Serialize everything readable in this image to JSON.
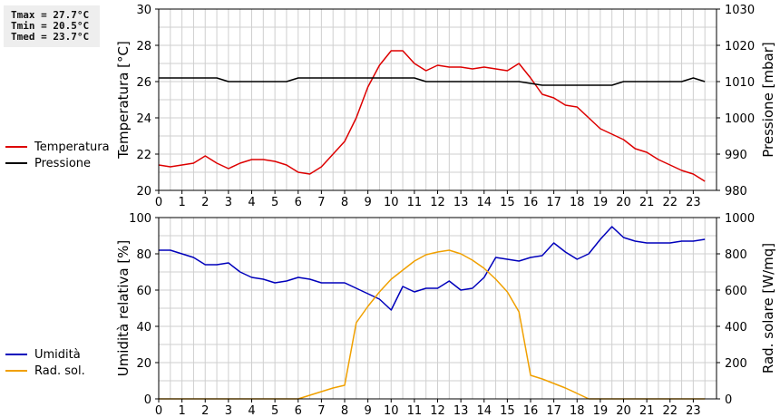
{
  "stats": {
    "tmax": "Tmax = 27.7°C",
    "tmin": "Tmin = 20.5°C",
    "tmed": "Tmed = 23.7°C"
  },
  "colors": {
    "temperature": "#dd0000",
    "pressure": "#000000",
    "humidity": "#0000bb",
    "solar": "#f0a000",
    "grid": "#cfcfcf"
  },
  "chart_data": [
    {
      "type": "line",
      "x_ticks": [
        "0",
        "1",
        "2",
        "3",
        "4",
        "5",
        "6",
        "7",
        "8",
        "9",
        "10",
        "11",
        "12",
        "13",
        "14",
        "15",
        "16",
        "17",
        "18",
        "19",
        "20",
        "21",
        "22",
        "23"
      ],
      "xlim": [
        0,
        24
      ],
      "ylabel_left": "Temperatura [°C]",
      "ylabel_right": "Pressione [mbar]",
      "ylim_left": [
        20,
        30
      ],
      "ylim_right": [
        980,
        1030
      ],
      "yticks_left": [
        "20",
        "22",
        "24",
        "26",
        "28",
        "30"
      ],
      "yticks_right": [
        "980",
        "990",
        "1000",
        "1010",
        "1020",
        "1030"
      ],
      "grid": true,
      "legend_position": "left",
      "series": [
        {
          "name": "Temperatura",
          "axis": "left",
          "x": [
            0,
            0.5,
            1,
            1.5,
            2,
            2.5,
            3,
            3.5,
            4,
            4.5,
            5,
            5.5,
            6,
            6.5,
            7,
            7.5,
            8,
            8.5,
            9,
            9.5,
            10,
            10.5,
            11,
            11.5,
            12,
            12.5,
            13,
            13.5,
            14,
            14.5,
            15,
            15.5,
            16,
            16.5,
            17,
            17.5,
            18,
            18.5,
            19,
            19.5,
            20,
            20.5,
            21,
            21.5,
            22,
            22.5,
            23,
            23.5
          ],
          "values": [
            21.4,
            21.3,
            21.4,
            21.5,
            21.9,
            21.5,
            21.2,
            21.5,
            21.7,
            21.7,
            21.6,
            21.4,
            21.0,
            20.9,
            21.3,
            22.0,
            22.7,
            24.0,
            25.7,
            26.9,
            27.7,
            27.7,
            27.0,
            26.6,
            26.9,
            26.8,
            26.8,
            26.7,
            26.8,
            26.7,
            26.6,
            27.0,
            26.2,
            25.3,
            25.1,
            24.7,
            24.6,
            24.0,
            23.4,
            23.1,
            22.8,
            22.3,
            22.1,
            21.7,
            21.4,
            21.1,
            20.9,
            20.5
          ]
        },
        {
          "name": "Pressione",
          "axis": "right",
          "x": [
            0,
            0.5,
            1,
            1.5,
            2,
            2.5,
            3,
            3.5,
            4,
            4.5,
            5,
            5.5,
            6,
            6.5,
            7,
            7.5,
            8,
            8.5,
            9,
            9.5,
            10,
            10.5,
            11,
            11.5,
            12,
            12.5,
            13,
            13.5,
            14,
            14.5,
            15,
            15.5,
            16,
            16.5,
            17,
            17.5,
            18,
            18.5,
            19,
            19.5,
            20,
            20.5,
            21,
            21.5,
            22,
            22.5,
            23,
            23.5
          ],
          "values": [
            1011,
            1011,
            1011,
            1011,
            1011,
            1011,
            1010,
            1010,
            1010,
            1010,
            1010,
            1010,
            1011,
            1011,
            1011,
            1011,
            1011,
            1011,
            1011,
            1011,
            1011,
            1011,
            1011,
            1010,
            1010,
            1010,
            1010,
            1010,
            1010,
            1010,
            1010,
            1010,
            1009.5,
            1009,
            1009,
            1009,
            1009,
            1009,
            1009,
            1009,
            1010,
            1010,
            1010,
            1010,
            1010,
            1010,
            1011,
            1010
          ]
        }
      ]
    },
    {
      "type": "line",
      "x_ticks": [
        "0",
        "1",
        "2",
        "3",
        "4",
        "5",
        "6",
        "7",
        "8",
        "9",
        "10",
        "11",
        "12",
        "13",
        "14",
        "15",
        "16",
        "17",
        "18",
        "19",
        "20",
        "21",
        "22",
        "23"
      ],
      "xlim": [
        0,
        24
      ],
      "ylabel_left": "Umidità relativa [%]",
      "ylabel_right": "Rad. solare [W/mq]",
      "ylim_left": [
        0,
        100
      ],
      "ylim_right": [
        0,
        1000
      ],
      "yticks_left": [
        "0",
        "20",
        "40",
        "60",
        "80",
        "100"
      ],
      "yticks_right": [
        "0",
        "200",
        "400",
        "600",
        "800",
        "1000"
      ],
      "grid": true,
      "legend_position": "left",
      "series": [
        {
          "name": "Umidità",
          "axis": "left",
          "x": [
            0,
            0.5,
            1,
            1.5,
            2,
            2.5,
            3,
            3.5,
            4,
            4.5,
            5,
            5.5,
            6,
            6.5,
            7,
            7.5,
            8,
            8.5,
            9,
            9.5,
            10,
            10.5,
            11,
            11.5,
            12,
            12.5,
            13,
            13.5,
            14,
            14.5,
            15,
            15.5,
            16,
            16.5,
            17,
            17.5,
            18,
            18.5,
            19,
            19.5,
            20,
            20.5,
            21,
            21.5,
            22,
            22.5,
            23,
            23.5
          ],
          "values": [
            82,
            82,
            80,
            78,
            74,
            74,
            75,
            70,
            67,
            66,
            64,
            65,
            67,
            66,
            64,
            64,
            64,
            61,
            58,
            55,
            49,
            62,
            59,
            61,
            61,
            65,
            60,
            61,
            67,
            78,
            77,
            76,
            78,
            79,
            86,
            81,
            77,
            80,
            88,
            95,
            89,
            87,
            86,
            86,
            86,
            87,
            87,
            88
          ]
        },
        {
          "name": "Rad. sol.",
          "axis": "right",
          "x": [
            0,
            0.5,
            1,
            1.5,
            2,
            2.5,
            3,
            3.5,
            4,
            4.5,
            5,
            5.5,
            6,
            6.5,
            7,
            7.5,
            8,
            8.5,
            9,
            9.5,
            10,
            10.5,
            11,
            11.5,
            12,
            12.5,
            13,
            13.5,
            14,
            14.5,
            15,
            15.5,
            16,
            16.5,
            17,
            17.5,
            18,
            18.5,
            19,
            19.5,
            20,
            20.5,
            21,
            21.5,
            22,
            22.5,
            23,
            23.5
          ],
          "values": [
            0,
            0,
            0,
            0,
            0,
            0,
            0,
            0,
            0,
            0,
            0,
            0,
            0,
            20,
            40,
            60,
            75,
            420,
            510,
            590,
            660,
            710,
            760,
            795,
            810,
            820,
            800,
            765,
            720,
            660,
            590,
            480,
            130,
            110,
            85,
            60,
            30,
            0,
            0,
            0,
            0,
            0,
            0,
            0,
            0,
            0,
            0,
            0
          ]
        }
      ]
    }
  ]
}
